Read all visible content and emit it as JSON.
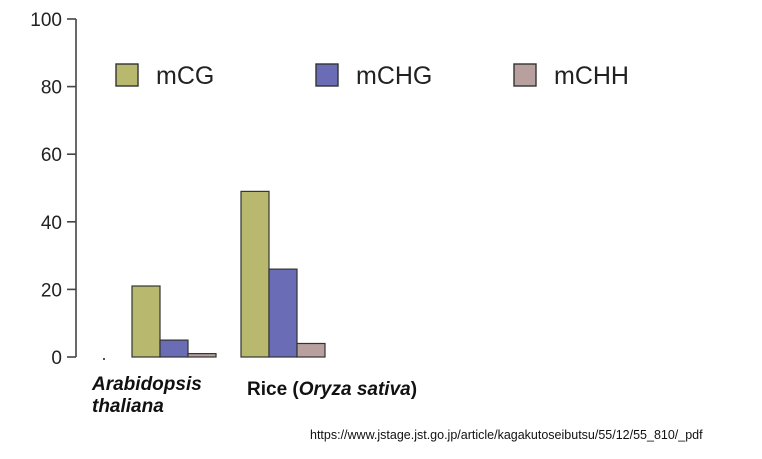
{
  "chart_data": {
    "type": "bar",
    "categories": [
      "Arabidopsis thaliana",
      "Rice (Oryza sativa)"
    ],
    "category_labels": [
      {
        "line1_italic": "Arabidopsis",
        "line2_italic": "thaliana"
      },
      {
        "prefix": "Rice (",
        "italic": "Oryza sativa",
        "suffix": ")"
      }
    ],
    "series": [
      {
        "name": "mCG",
        "values": [
          21,
          49
        ],
        "color": "#b8b96e"
      },
      {
        "name": "mCHG",
        "values": [
          5,
          26
        ],
        "color": "#6a6db5"
      },
      {
        "name": "mCHH",
        "values": [
          1,
          4
        ],
        "color": "#b8a09e"
      }
    ],
    "ylim": [
      0,
      100
    ],
    "yticks": [
      0,
      20,
      40,
      60,
      80,
      100
    ],
    "xlabel": "",
    "ylabel": "",
    "grid": false,
    "legend_position": "top"
  },
  "source_url": "https://www.jstage.jst.go.jp/article/kagakutoseibutsu/55/12/55_810/_pdf"
}
